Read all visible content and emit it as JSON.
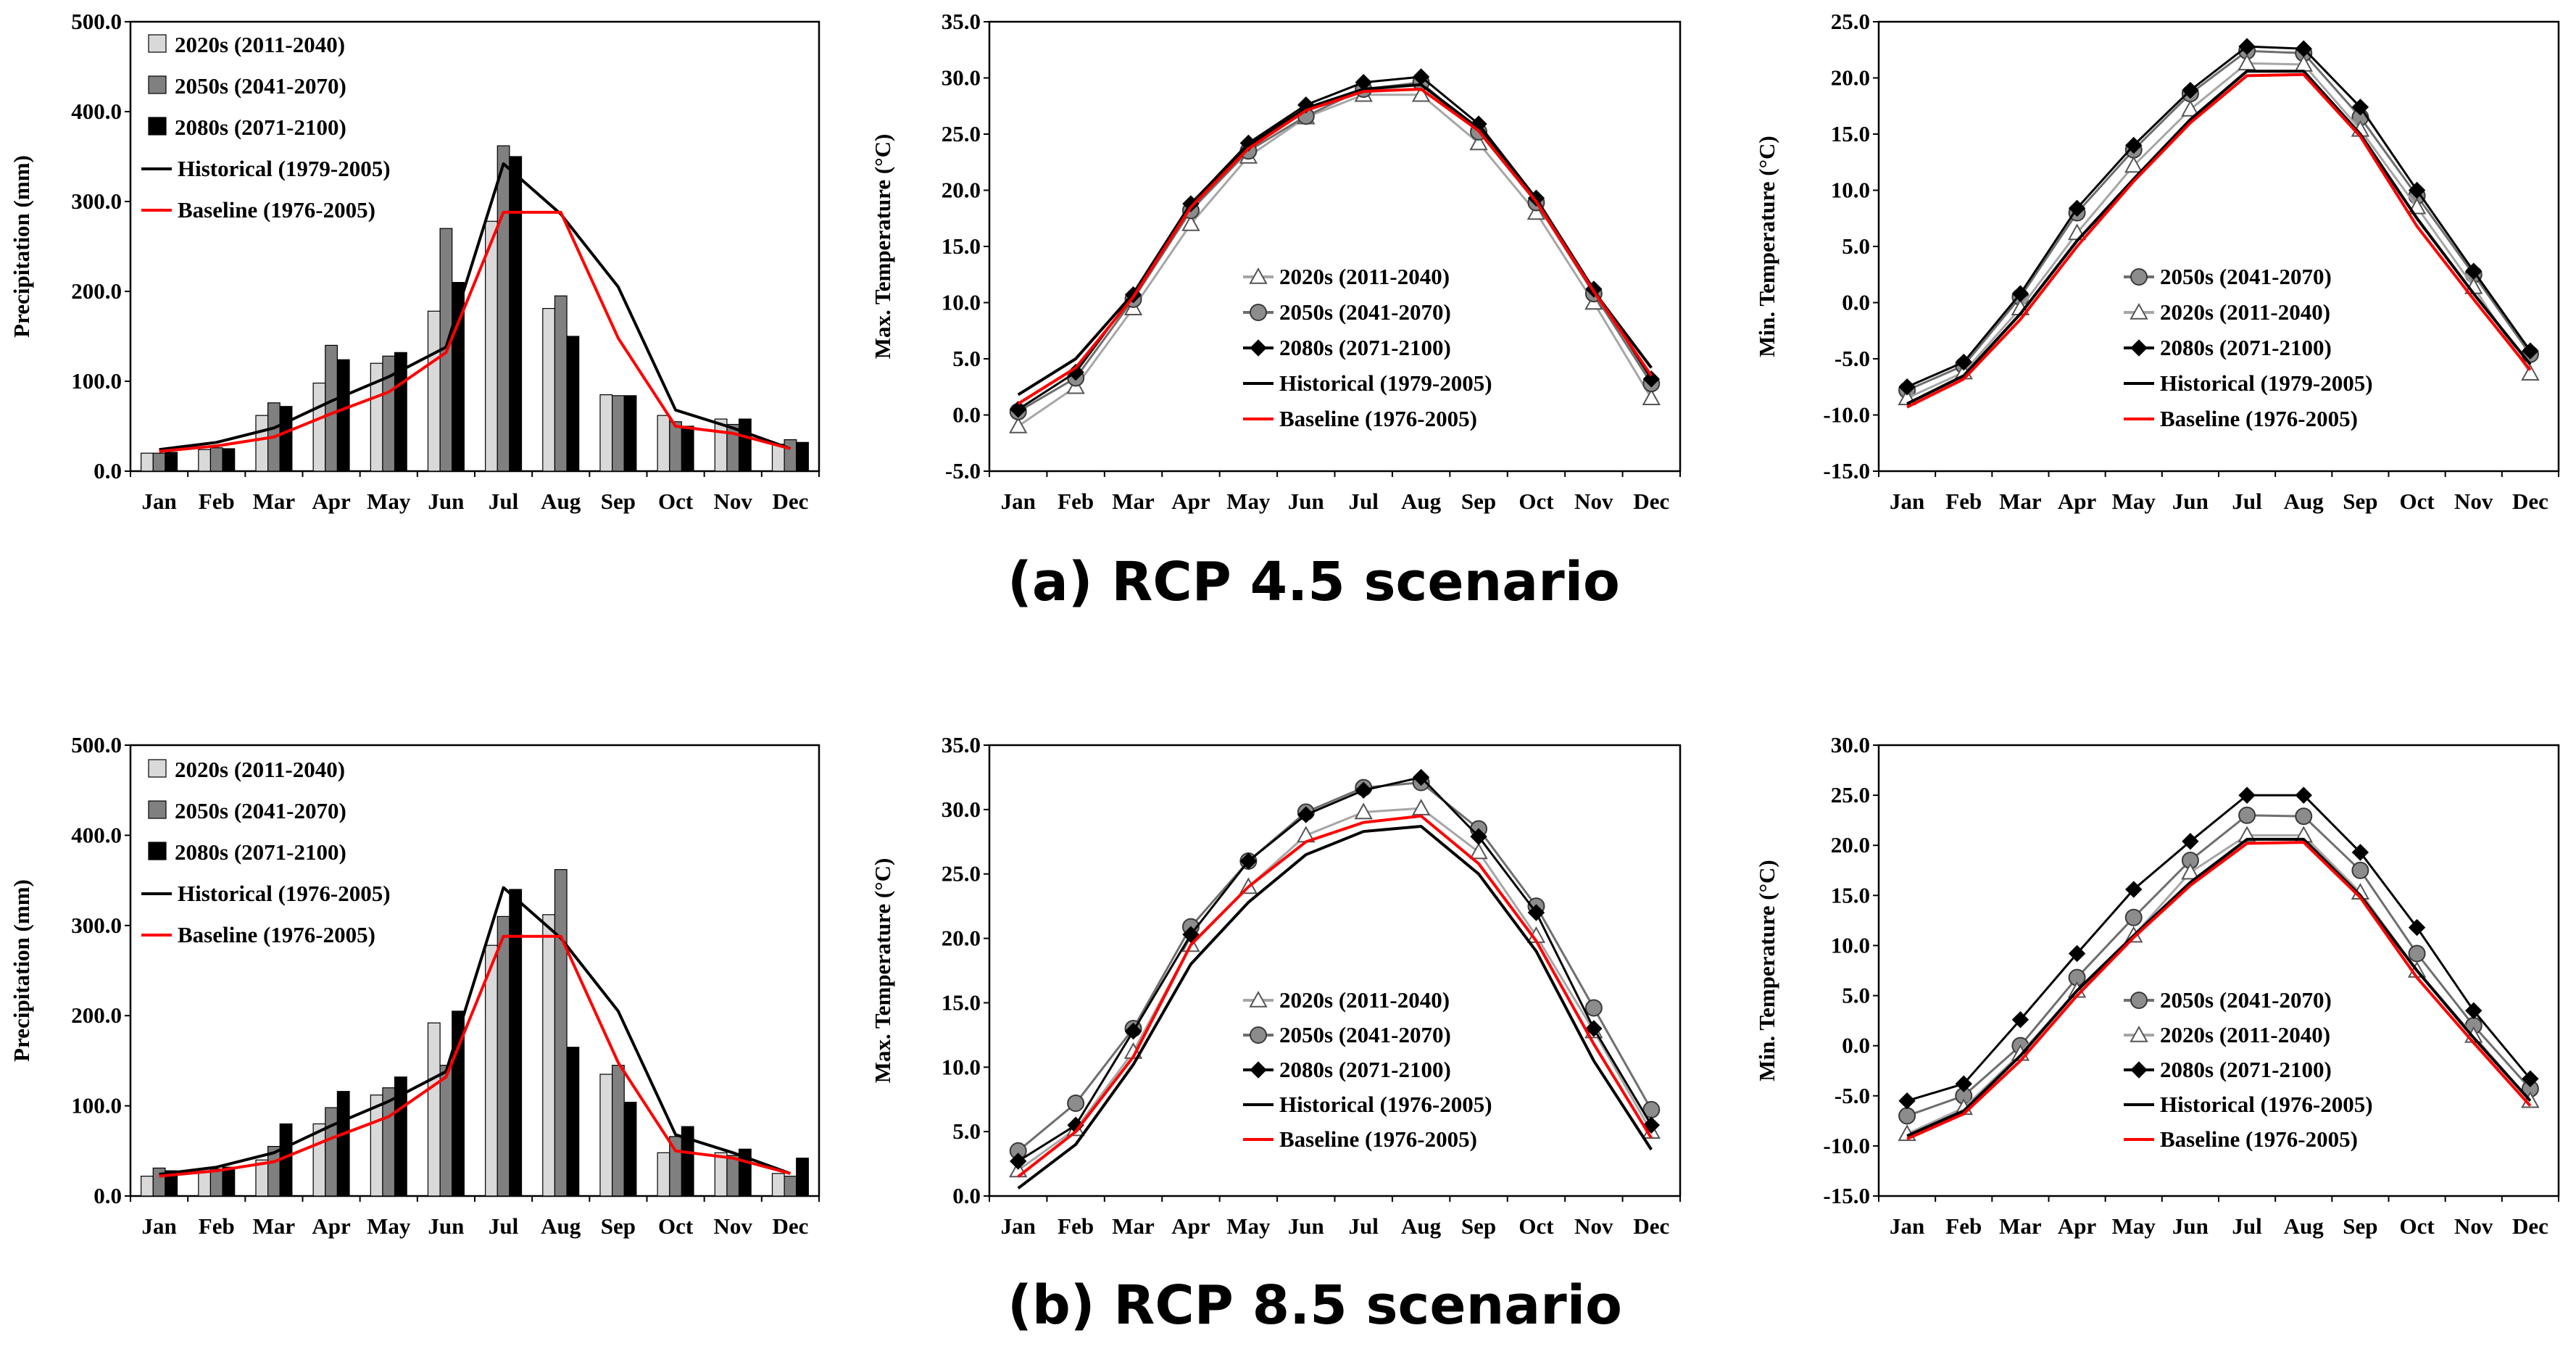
{
  "captions": {
    "rcp45": "(a) RCP 4.5 scenario",
    "rcp85": "(b) RCP 8.5 scenario"
  },
  "colors": {
    "s2020": "#d9d9d9",
    "s2050": "#808080",
    "s2080": "#000000",
    "historical": "#000000",
    "baseline": "#ff0000"
  },
  "chart_data": [
    {
      "id": "precip45",
      "type": "bar",
      "ylabel": "Precipitation (mm)",
      "ylim": [
        0,
        500
      ],
      "yticks": [
        0,
        100,
        200,
        300,
        400,
        500
      ],
      "ytick_labels": [
        "0.0",
        "100.0",
        "200.0",
        "300.0",
        "400.0",
        "500.0"
      ],
      "legend_position": "top-left",
      "categories": [
        "Jan",
        "Feb",
        "Mar",
        "Apr",
        "May",
        "Jun",
        "Jul",
        "Aug",
        "Sep",
        "Oct",
        "Nov",
        "Dec"
      ],
      "series": [
        {
          "name": "2020s (2011-2040)",
          "style": "bar",
          "colorKey": "s2020",
          "values": [
            20,
            24,
            62,
            98,
            120,
            178,
            278,
            181,
            85,
            62,
            58,
            30
          ]
        },
        {
          "name": "2050s (2041-2070)",
          "style": "bar",
          "colorKey": "s2050",
          "values": [
            20,
            26,
            76,
            140,
            128,
            270,
            362,
            195,
            84,
            55,
            52,
            35
          ]
        },
        {
          "name": "2080s (2071-2100)",
          "style": "bar",
          "colorKey": "s2080",
          "values": [
            21,
            25,
            72,
            124,
            132,
            210,
            350,
            150,
            84,
            50,
            58,
            32
          ]
        },
        {
          "name": "Historical (1979-2005)",
          "style": "line",
          "colorKey": "historical",
          "values": [
            24,
            32,
            48,
            78,
            105,
            138,
            342,
            286,
            205,
            68,
            48,
            25
          ]
        },
        {
          "name": "Baseline (1976-2005)",
          "style": "line",
          "colorKey": "baseline",
          "values": [
            22,
            28,
            38,
            64,
            88,
            132,
            288,
            288,
            148,
            50,
            42,
            25
          ]
        }
      ]
    },
    {
      "id": "tmax45",
      "type": "line",
      "ylabel": "Max. Temperature (°C)",
      "ylim": [
        -5,
        35
      ],
      "yticks": [
        -5,
        0,
        5,
        10,
        15,
        20,
        25,
        30,
        35
      ],
      "ytick_labels": [
        "-5.0",
        "0.0",
        "5.0",
        "10.0",
        "15.0",
        "20.0",
        "25.0",
        "30.0",
        "35.0"
      ],
      "legend_position": "center-bottom",
      "categories": [
        "Jan",
        "Feb",
        "Mar",
        "Apr",
        "May",
        "Jun",
        "Jul",
        "Aug",
        "Sep",
        "Oct",
        "Nov",
        "Dec"
      ],
      "series": [
        {
          "name": "2020s (2011-2040)",
          "style": "triangle",
          "colorKey": "s2020",
          "values": [
            -1.0,
            2.5,
            9.5,
            17.0,
            23.0,
            26.5,
            28.5,
            28.5,
            24.2,
            18.0,
            10.0,
            1.5
          ]
        },
        {
          "name": "2050s (2041-2070)",
          "style": "circle",
          "colorKey": "s2050",
          "values": [
            0.3,
            3.3,
            10.3,
            18.2,
            23.5,
            26.6,
            29.0,
            29.6,
            25.2,
            18.9,
            10.8,
            2.8
          ]
        },
        {
          "name": "2080s (2071-2100)",
          "style": "diamond",
          "colorKey": "s2080",
          "values": [
            0.5,
            3.8,
            10.7,
            18.8,
            24.2,
            27.6,
            29.6,
            30.1,
            25.9,
            19.3,
            11.2,
            3.2
          ]
        },
        {
          "name": "Historical (1979-2005)",
          "style": "line",
          "colorKey": "historical",
          "values": [
            1.8,
            5.0,
            10.8,
            18.8,
            24.0,
            27.3,
            29.0,
            29.4,
            25.5,
            19.2,
            11.0,
            4.2
          ]
        },
        {
          "name": "Baseline (1976-2005)",
          "style": "line",
          "colorKey": "baseline",
          "values": [
            1.0,
            4.2,
            10.5,
            18.5,
            23.7,
            27.1,
            28.8,
            29.0,
            25.3,
            19.0,
            11.0,
            3.5
          ]
        }
      ]
    },
    {
      "id": "tmin45",
      "type": "line",
      "ylabel": "Min. Temperature (°C)",
      "ylim": [
        -15,
        25
      ],
      "yticks": [
        -15,
        -10,
        -5,
        0,
        5,
        10,
        15,
        20,
        25
      ],
      "ytick_labels": [
        "-15.0",
        "-10.0",
        "-5.0",
        "0.0",
        "5.0",
        "10.0",
        "15.0",
        "20.0",
        "25.0"
      ],
      "legend_position": "center-bottom",
      "categories": [
        "Jan",
        "Feb",
        "Mar",
        "Apr",
        "May",
        "Jun",
        "Jul",
        "Aug",
        "Sep",
        "Oct",
        "Nov",
        "Dec"
      ],
      "series": [
        {
          "name": "2050s (2041-2070)",
          "style": "circle",
          "colorKey": "s2050",
          "values": [
            -7.8,
            -5.6,
            0.5,
            8.0,
            13.6,
            18.6,
            22.4,
            22.2,
            16.5,
            9.5,
            2.5,
            -4.6
          ]
        },
        {
          "name": "2020s (2011-2040)",
          "style": "triangle",
          "colorKey": "s2020",
          "values": [
            -8.5,
            -6.2,
            -0.5,
            6.2,
            12.2,
            17.2,
            21.3,
            21.2,
            15.4,
            8.5,
            1.4,
            -6.3
          ]
        },
        {
          "name": "2080s (2071-2100)",
          "style": "diamond",
          "colorKey": "s2080",
          "values": [
            -7.5,
            -5.3,
            0.8,
            8.4,
            14.0,
            18.9,
            22.8,
            22.6,
            17.4,
            10.0,
            2.8,
            -4.3
          ]
        },
        {
          "name": "Historical (1979-2005)",
          "style": "line",
          "colorKey": "historical",
          "values": [
            -9.0,
            -6.5,
            -1.0,
            5.5,
            11.0,
            16.3,
            20.6,
            20.6,
            15.0,
            7.5,
            0.8,
            -5.5
          ]
        },
        {
          "name": "Baseline (1976-2005)",
          "style": "line",
          "colorKey": "baseline",
          "values": [
            -9.3,
            -6.8,
            -1.5,
            5.0,
            10.8,
            16.0,
            20.2,
            20.3,
            14.8,
            6.8,
            0.3,
            -6.0
          ]
        }
      ]
    },
    {
      "id": "precip85",
      "type": "bar",
      "ylabel": "Precipitation (mm)",
      "ylim": [
        0,
        500
      ],
      "yticks": [
        0,
        100,
        200,
        300,
        400,
        500
      ],
      "ytick_labels": [
        "0.0",
        "100.0",
        "200.0",
        "300.0",
        "400.0",
        "500.0"
      ],
      "legend_position": "top-left",
      "categories": [
        "Jan",
        "Feb",
        "Mar",
        "Apr",
        "May",
        "Jun",
        "Jul",
        "Aug",
        "Sep",
        "Oct",
        "Nov",
        "Dec"
      ],
      "series": [
        {
          "name": "2020s (2011-2040)",
          "style": "bar",
          "colorKey": "s2020",
          "values": [
            22,
            30,
            40,
            80,
            112,
            192,
            278,
            312,
            135,
            48,
            48,
            25
          ]
        },
        {
          "name": "2050s (2041-2070)",
          "style": "bar",
          "colorKey": "s2050",
          "values": [
            31,
            30,
            55,
            98,
            120,
            145,
            310,
            362,
            145,
            66,
            45,
            22
          ]
        },
        {
          "name": "2080s (2071-2100)",
          "style": "bar",
          "colorKey": "s2080",
          "values": [
            28,
            32,
            80,
            116,
            132,
            205,
            340,
            165,
            104,
            77,
            52,
            42
          ]
        },
        {
          "name": "Historical (1976-2005)",
          "style": "line",
          "colorKey": "historical",
          "values": [
            24,
            32,
            48,
            78,
            105,
            138,
            342,
            286,
            205,
            68,
            48,
            25
          ]
        },
        {
          "name": "Baseline (1976-2005)",
          "style": "line",
          "colorKey": "baseline",
          "values": [
            22,
            28,
            38,
            64,
            88,
            132,
            288,
            288,
            148,
            50,
            42,
            25
          ]
        }
      ]
    },
    {
      "id": "tmax85",
      "type": "line",
      "ylabel": "Max. Temperature (°C)",
      "ylim": [
        0,
        35
      ],
      "yticks": [
        0,
        5,
        10,
        15,
        20,
        25,
        30,
        35
      ],
      "ytick_labels": [
        "0.0",
        "5.0",
        "10.0",
        "15.0",
        "20.0",
        "25.0",
        "30.0",
        "35.0"
      ],
      "legend_position": "center-bottom",
      "categories": [
        "Jan",
        "Feb",
        "Mar",
        "Apr",
        "May",
        "Jun",
        "Jul",
        "Aug",
        "Sep",
        "Oct",
        "Nov",
        "Dec"
      ],
      "series": [
        {
          "name": "2020s (2011-2040)",
          "style": "triangle",
          "colorKey": "s2020",
          "values": [
            2.0,
            5.2,
            11.2,
            19.5,
            24.0,
            28.0,
            29.8,
            30.1,
            26.7,
            20.2,
            12.8,
            5.0
          ]
        },
        {
          "name": "2050s (2041-2070)",
          "style": "circle",
          "colorKey": "s2050",
          "values": [
            3.5,
            7.2,
            13.0,
            20.9,
            26.0,
            29.8,
            31.7,
            32.1,
            28.5,
            22.5,
            14.6,
            6.7
          ]
        },
        {
          "name": "2080s (2071-2100)",
          "style": "diamond",
          "colorKey": "s2080",
          "values": [
            2.7,
            5.5,
            12.8,
            20.3,
            26.0,
            29.6,
            31.5,
            32.5,
            27.9,
            22.0,
            13.0,
            5.5
          ]
        },
        {
          "name": "Historical (1976-2005)",
          "style": "line",
          "colorKey": "historical",
          "values": [
            0.6,
            4.0,
            10.2,
            18.0,
            22.8,
            26.5,
            28.3,
            28.7,
            25.0,
            19.0,
            10.5,
            3.6
          ]
        },
        {
          "name": "Baseline (1976-2005)",
          "style": "line",
          "colorKey": "baseline",
          "values": [
            1.5,
            5.0,
            10.8,
            19.5,
            24.0,
            27.5,
            29.0,
            29.5,
            25.8,
            19.8,
            11.8,
            4.5
          ]
        }
      ]
    },
    {
      "id": "tmin85",
      "type": "line",
      "ylabel": "Min. Temperature (°C)",
      "ylim": [
        -15,
        30
      ],
      "yticks": [
        -15,
        -10,
        -5,
        0,
        5,
        10,
        15,
        20,
        25,
        30
      ],
      "ytick_labels": [
        "-15.0",
        "-10.0",
        "-5.0",
        "0.0",
        "5.0",
        "10.0",
        "15.0",
        "20.0",
        "25.0",
        "30.0"
      ],
      "legend_position": "center-bottom",
      "categories": [
        "Jan",
        "Feb",
        "Mar",
        "Apr",
        "May",
        "Jun",
        "Jul",
        "Aug",
        "Sep",
        "Oct",
        "Nov",
        "Dec"
      ],
      "series": [
        {
          "name": "2050s (2041-2070)",
          "style": "circle",
          "colorKey": "s2050",
          "values": [
            -7.0,
            -5.0,
            0.0,
            6.8,
            12.8,
            18.5,
            23.0,
            22.9,
            17.5,
            9.2,
            2.0,
            -4.3
          ]
        },
        {
          "name": "2020s (2011-2040)",
          "style": "triangle",
          "colorKey": "s2020",
          "values": [
            -8.8,
            -6.2,
            -0.8,
            5.5,
            11.0,
            17.3,
            21.0,
            21.0,
            15.3,
            7.5,
            1.0,
            -5.5
          ]
        },
        {
          "name": "2080s (2071-2100)",
          "style": "diamond",
          "colorKey": "s2080",
          "values": [
            -5.5,
            -3.8,
            2.6,
            9.2,
            15.6,
            20.4,
            25.0,
            25.0,
            19.3,
            11.8,
            3.5,
            -3.3
          ]
        },
        {
          "name": "Historical (1976-2005)",
          "style": "line",
          "colorKey": "historical",
          "values": [
            -9.0,
            -6.5,
            -1.0,
            5.5,
            11.0,
            16.3,
            20.6,
            20.6,
            15.0,
            7.5,
            0.8,
            -5.5
          ]
        },
        {
          "name": "Baseline (1976-2005)",
          "style": "line",
          "colorKey": "baseline",
          "values": [
            -9.3,
            -6.8,
            -1.5,
            5.0,
            10.8,
            16.0,
            20.2,
            20.3,
            14.8,
            6.8,
            0.3,
            -6.0
          ]
        }
      ]
    }
  ]
}
